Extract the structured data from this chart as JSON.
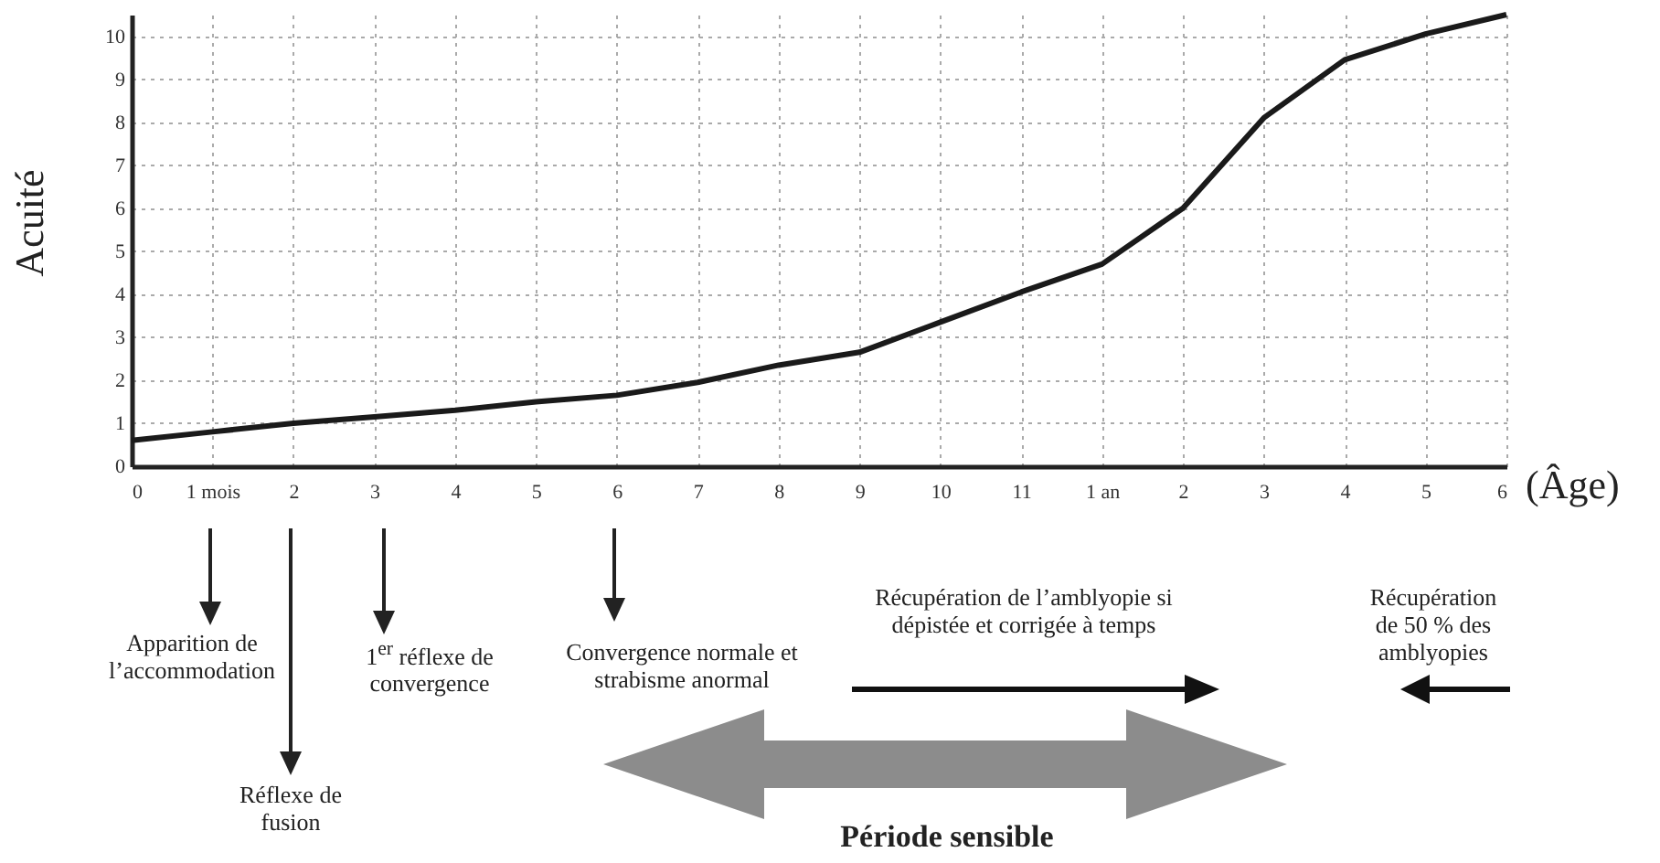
{
  "chart_data": {
    "type": "line",
    "xlabel": "(Âge)",
    "ylabel": "Acuité",
    "categories": [
      "0",
      "1 mois",
      "2",
      "3",
      "4",
      "5",
      "6",
      "7",
      "8",
      "9",
      "10",
      "11",
      "1 an",
      "2",
      "3",
      "4",
      "5",
      "6"
    ],
    "series": [
      {
        "color": "#1a1a1a",
        "values": [
          0.6,
          0.8,
          1.0,
          1.15,
          1.3,
          1.5,
          1.65,
          1.95,
          2.35,
          2.65,
          3.35,
          4.05,
          4.7,
          6.0,
          8.1,
          9.45,
          10.05,
          10.5
        ]
      }
    ],
    "ylim": [
      0,
      10.5
    ],
    "yticks": [
      0,
      1,
      2,
      3,
      4,
      5,
      6,
      7,
      8,
      9,
      10
    ],
    "grid": true,
    "marker": "none",
    "line_style": "solid",
    "annotations": [
      "Apparition de l’accommodation",
      "Réflexe de fusion",
      "1$^{er}$ réflexe de convergence",
      "Convergence normale et strabisme anormal",
      "Récupération de l’amblyopie si dépistée et corrigée à temps",
      "Récupération de 50 % des amblyopies",
      "Période sensible"
    ]
  }
}
